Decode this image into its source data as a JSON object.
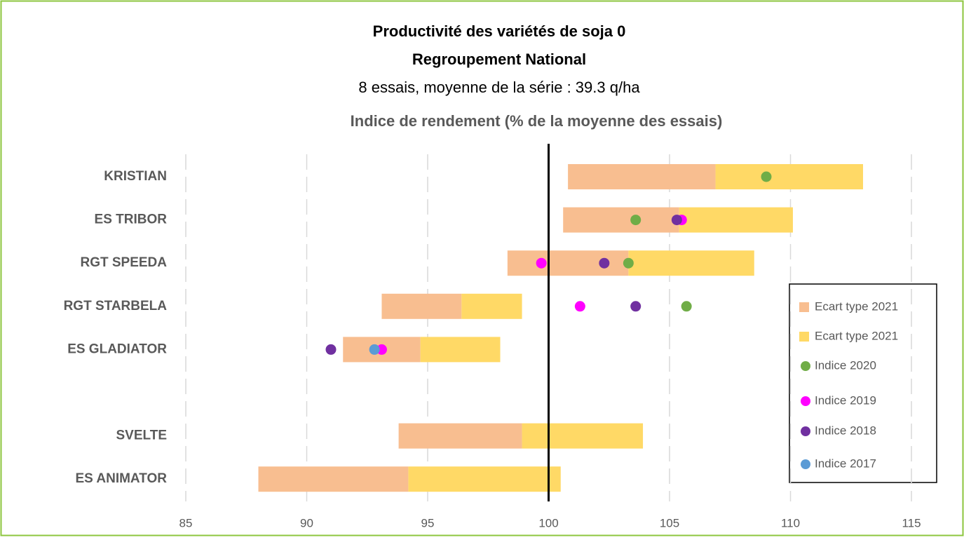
{
  "chart_data": {
    "type": "floating_bar",
    "title": "Productivité des variétés de soja 0",
    "title2": "Regroupement National",
    "subtitle": "8 essais, moyenne de la série : 39.3 q/ha",
    "axis_title": "Indice de rendement (% de la moyenne des essais)",
    "categories": [
      "KRISTIAN",
      "ES TRIBOR",
      "RGT SPEEDA",
      "RGT STARBELA",
      "ES GLADIATOR",
      null,
      "SVELTE",
      "ES ANIMATOR"
    ],
    "bar_start": [
      100.8,
      100.6,
      98.3,
      93.1,
      91.5,
      null,
      93.8,
      88.0
    ],
    "bar_series": [
      {
        "name": "Ecart type 2021",
        "color": "#f8be90",
        "values": [
          6.1,
          4.8,
          5.0,
          3.3,
          3.2,
          null,
          5.1,
          6.2
        ]
      },
      {
        "name": "Ecart type 2021",
        "color": "#ffd966",
        "values": [
          6.1,
          4.7,
          5.2,
          2.5,
          3.3,
          null,
          5.0,
          6.3
        ]
      }
    ],
    "dot_series": [
      {
        "name": "Indice 2020",
        "color": "#70ad47",
        "values": [
          109.0,
          103.6,
          103.3,
          105.7,
          null,
          null,
          null,
          null
        ]
      },
      {
        "name": "Indice 2019",
        "color": "#ff00ff",
        "values": [
          null,
          105.5,
          99.7,
          101.3,
          93.1,
          null,
          null,
          null
        ]
      },
      {
        "name": "Indice 2018",
        "color": "#7030a0",
        "values": [
          null,
          105.3,
          102.3,
          103.6,
          91.0,
          null,
          null,
          null
        ]
      },
      {
        "name": "Indice 2017",
        "color": "#5b9bd5",
        "values": [
          null,
          null,
          null,
          null,
          92.8,
          null,
          null,
          null
        ]
      }
    ],
    "xlim": [
      85,
      115
    ],
    "xticks": [
      85,
      90,
      95,
      100,
      105,
      110,
      115
    ],
    "x_crossing": 100,
    "grid": true,
    "legend": "right"
  }
}
